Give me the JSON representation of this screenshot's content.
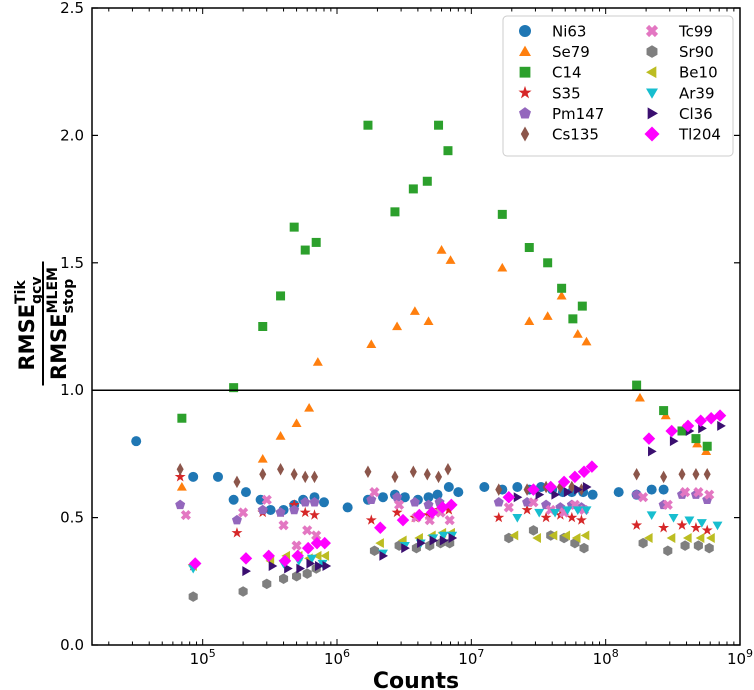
{
  "chart_data": {
    "type": "scatter",
    "title": "",
    "xlabel": "Counts",
    "ylabel": {
      "num_base": "RMSE",
      "num_sup": "Tik",
      "num_sub": "gcv",
      "den_base": "RMSE",
      "den_sup": "MLEM",
      "den_sub": "stop"
    },
    "xscale": "log",
    "xlim": [
      15000,
      1000000000
    ],
    "ylim": [
      0.0,
      2.5
    ],
    "x_ticks": [
      {
        "value": 100000,
        "base": "10",
        "exp": "5"
      },
      {
        "value": 1000000,
        "base": "10",
        "exp": "6"
      },
      {
        "value": 10000000,
        "base": "10",
        "exp": "7"
      },
      {
        "value": 100000000,
        "base": "10",
        "exp": "8"
      },
      {
        "value": 1000000000,
        "base": "10",
        "exp": "9"
      }
    ],
    "y_ticks": [
      {
        "value": 0.0,
        "label": "0.0"
      },
      {
        "value": 0.5,
        "label": "0.5"
      },
      {
        "value": 1.0,
        "label": "1.0"
      },
      {
        "value": 1.5,
        "label": "1.5"
      },
      {
        "value": 2.0,
        "label": "2.0"
      },
      {
        "value": 2.5,
        "label": "2.5"
      }
    ],
    "reference_line": {
      "y": 1.0
    },
    "grid": false,
    "legend_position": "top-right",
    "series": [
      {
        "name": "Ni63",
        "color": "#1f77b4",
        "marker": "circle",
        "x": [
          32000,
          85000,
          130000,
          170000,
          210000,
          270000,
          320000,
          400000,
          480000,
          560000,
          680000,
          800000,
          1200000,
          1700000,
          2200000,
          2700000,
          3200000,
          4000000,
          4800000,
          5600000,
          6800000,
          8000000,
          12500000,
          17000000,
          22000000,
          27000000,
          33000000,
          40000000,
          48000000,
          56000000,
          68000000,
          80000000,
          125000000,
          170000000,
          220000000,
          270000000
        ],
        "y": [
          0.8,
          0.66,
          0.66,
          0.57,
          0.6,
          0.57,
          0.53,
          0.53,
          0.55,
          0.57,
          0.58,
          0.56,
          0.54,
          0.57,
          0.58,
          0.59,
          0.58,
          0.57,
          0.58,
          0.59,
          0.62,
          0.6,
          0.62,
          0.61,
          0.62,
          0.61,
          0.62,
          0.61,
          0.6,
          0.6,
          0.6,
          0.59,
          0.6,
          0.59,
          0.61,
          0.61
        ]
      },
      {
        "name": "Se79",
        "color": "#ff7f0e",
        "marker": "triangle-up",
        "x": [
          70000,
          280000,
          380000,
          500000,
          620000,
          720000,
          1800000,
          2800000,
          3800000,
          4800000,
          6000000,
          7000000,
          17000000,
          27000000,
          37000000,
          47000000,
          62000000,
          72000000,
          180000000,
          280000000,
          380000000,
          480000000,
          560000000
        ],
        "y": [
          0.62,
          0.73,
          0.82,
          0.87,
          0.93,
          1.11,
          1.18,
          1.25,
          1.31,
          1.27,
          1.55,
          1.51,
          1.48,
          1.27,
          1.29,
          1.37,
          1.22,
          1.19,
          0.97,
          0.9,
          0.85,
          0.79,
          0.76
        ]
      },
      {
        "name": "C14",
        "color": "#2ca02c",
        "marker": "square",
        "x": [
          70000,
          170000,
          280000,
          380000,
          480000,
          580000,
          700000,
          1700000,
          2700000,
          3700000,
          4700000,
          5700000,
          6700000,
          17000000,
          27000000,
          37000000,
          47000000,
          57000000,
          67000000,
          170000000,
          270000000,
          370000000,
          470000000,
          570000000
        ],
        "y": [
          0.89,
          1.01,
          1.25,
          1.37,
          1.64,
          1.55,
          1.58,
          2.04,
          1.7,
          1.79,
          1.82,
          2.04,
          1.94,
          1.69,
          1.56,
          1.5,
          1.4,
          1.28,
          1.33,
          1.02,
          0.92,
          0.84,
          0.81,
          0.78
        ]
      },
      {
        "name": "S35",
        "color": "#d62728",
        "marker": "star",
        "x": [
          68000,
          85000,
          180000,
          280000,
          380000,
          480000,
          580000,
          680000,
          1800000,
          2800000,
          3800000,
          4800000,
          5800000,
          6800000,
          16000000,
          26000000,
          36000000,
          46000000,
          56000000,
          66000000,
          170000000,
          270000000,
          370000000,
          470000000,
          570000000
        ],
        "y": [
          0.66,
          0.31,
          0.44,
          0.52,
          0.52,
          0.55,
          0.52,
          0.51,
          0.49,
          0.52,
          0.5,
          0.51,
          0.53,
          0.53,
          0.5,
          0.53,
          0.5,
          0.51,
          0.5,
          0.49,
          0.47,
          0.46,
          0.47,
          0.46,
          0.45
        ]
      },
      {
        "name": "Pm147",
        "color": "#9467bd",
        "marker": "pentagon",
        "x": [
          68000,
          180000,
          280000,
          380000,
          480000,
          580000,
          680000,
          1800000,
          2800000,
          3800000,
          4800000,
          5800000,
          16000000,
          26000000,
          36000000,
          46000000,
          56000000,
          66000000,
          170000000,
          270000000,
          370000000,
          470000000,
          570000000
        ],
        "y": [
          0.55,
          0.49,
          0.53,
          0.52,
          0.53,
          0.56,
          0.56,
          0.57,
          0.58,
          0.56,
          0.55,
          0.56,
          0.56,
          0.56,
          0.55,
          0.54,
          0.55,
          0.54,
          0.59,
          0.55,
          0.59,
          0.59,
          0.57
        ]
      },
      {
        "name": "Cs135",
        "color": "#8c564b",
        "marker": "diamond-thin",
        "x": [
          68000,
          180000,
          280000,
          380000,
          480000,
          580000,
          680000,
          1700000,
          2700000,
          3700000,
          4700000,
          5700000,
          6700000,
          16000000,
          26000000,
          36000000,
          46000000,
          56000000,
          66000000,
          170000000,
          270000000,
          370000000,
          470000000,
          570000000
        ],
        "y": [
          0.69,
          0.64,
          0.67,
          0.69,
          0.67,
          0.66,
          0.66,
          0.68,
          0.66,
          0.68,
          0.67,
          0.66,
          0.69,
          0.61,
          0.61,
          0.62,
          0.62,
          0.62,
          0.61,
          0.67,
          0.66,
          0.67,
          0.67,
          0.67
        ]
      },
      {
        "name": "Tc99",
        "color": "#e377c2",
        "marker": "x-thick",
        "x": [
          75000,
          200000,
          300000,
          400000,
          500000,
          600000,
          700000,
          1900000,
          2900000,
          3900000,
          4900000,
          5900000,
          6900000,
          19000000,
          29000000,
          39000000,
          49000000,
          59000000,
          69000000,
          190000000,
          290000000,
          390000000,
          490000000,
          590000000
        ],
        "y": [
          0.51,
          0.52,
          0.57,
          0.47,
          0.39,
          0.45,
          0.43,
          0.6,
          0.55,
          0.5,
          0.49,
          0.52,
          0.49,
          0.54,
          0.56,
          0.53,
          0.52,
          0.55,
          0.53,
          0.58,
          0.55,
          0.6,
          0.6,
          0.59
        ]
      },
      {
        "name": "Sr90",
        "color": "#7f7f7f",
        "marker": "hexagon",
        "x": [
          85000,
          200000,
          300000,
          400000,
          500000,
          600000,
          700000,
          1900000,
          2900000,
          3900000,
          4900000,
          5900000,
          6900000,
          19000000,
          29000000,
          39000000,
          49000000,
          59000000,
          69000000,
          190000000,
          290000000,
          390000000,
          490000000,
          590000000
        ],
        "y": [
          0.19,
          0.21,
          0.24,
          0.26,
          0.27,
          0.28,
          0.3,
          0.37,
          0.39,
          0.38,
          0.39,
          0.4,
          0.4,
          0.42,
          0.45,
          0.43,
          0.42,
          0.4,
          0.38,
          0.4,
          0.37,
          0.39,
          0.39,
          0.38
        ]
      },
      {
        "name": "Be10",
        "color": "#bcbd22",
        "marker": "triangle-left",
        "x": [
          85000,
          320000,
          420000,
          520000,
          620000,
          720000,
          820000,
          2100000,
          3100000,
          4100000,
          5100000,
          6100000,
          7100000,
          21000000,
          31000000,
          41000000,
          51000000,
          61000000,
          71000000,
          210000000,
          310000000,
          410000000,
          510000000,
          610000000
        ],
        "y": [
          0.31,
          0.33,
          0.35,
          0.35,
          0.34,
          0.35,
          0.35,
          0.4,
          0.41,
          0.42,
          0.43,
          0.44,
          0.44,
          0.43,
          0.42,
          0.43,
          0.43,
          0.42,
          0.43,
          0.42,
          0.42,
          0.42,
          0.42,
          0.42
        ]
      },
      {
        "name": "Ar39",
        "color": "#17becf",
        "marker": "triangle-down",
        "x": [
          85000,
          400000,
          520000,
          650000,
          780000,
          2200000,
          3200000,
          4200000,
          5200000,
          6200000,
          7200000,
          22000000,
          32000000,
          42000000,
          52000000,
          62000000,
          72000000,
          220000000,
          320000000,
          420000000,
          520000000,
          680000000
        ],
        "y": [
          0.3,
          0.32,
          0.33,
          0.34,
          0.32,
          0.36,
          0.39,
          0.4,
          0.42,
          0.43,
          0.43,
          0.5,
          0.52,
          0.52,
          0.53,
          0.53,
          0.53,
          0.51,
          0.5,
          0.49,
          0.48,
          0.47
        ]
      },
      {
        "name": "Cl36",
        "color": "#3b0f70",
        "marker": "triangle-right",
        "x": [
          210000,
          330000,
          430000,
          530000,
          630000,
          730000,
          830000,
          2200000,
          3200000,
          4200000,
          5200000,
          6200000,
          7200000,
          22000000,
          32000000,
          42000000,
          52000000,
          62000000,
          72000000,
          220000000,
          320000000,
          420000000,
          520000000,
          720000000
        ],
        "y": [
          0.29,
          0.31,
          0.3,
          0.3,
          0.32,
          0.31,
          0.31,
          0.35,
          0.38,
          0.4,
          0.41,
          0.41,
          0.42,
          0.58,
          0.59,
          0.59,
          0.6,
          0.61,
          0.62,
          0.76,
          0.8,
          0.84,
          0.85,
          0.86
        ]
      },
      {
        "name": "Tl204",
        "color": "#ff00ff",
        "marker": "diamond",
        "x": [
          88000,
          210000,
          310000,
          410000,
          510000,
          610000,
          710000,
          810000,
          2100000,
          3100000,
          4100000,
          5100000,
          6100000,
          7100000,
          19000000,
          29000000,
          39000000,
          49000000,
          59000000,
          69000000,
          79000000,
          210000000,
          310000000,
          410000000,
          510000000,
          610000000,
          710000000
        ],
        "y": [
          0.32,
          0.34,
          0.35,
          0.33,
          0.35,
          0.38,
          0.4,
          0.4,
          0.46,
          0.49,
          0.51,
          0.52,
          0.54,
          0.55,
          0.58,
          0.61,
          0.62,
          0.64,
          0.66,
          0.68,
          0.7,
          0.81,
          0.84,
          0.86,
          0.88,
          0.89,
          0.9
        ]
      }
    ]
  }
}
